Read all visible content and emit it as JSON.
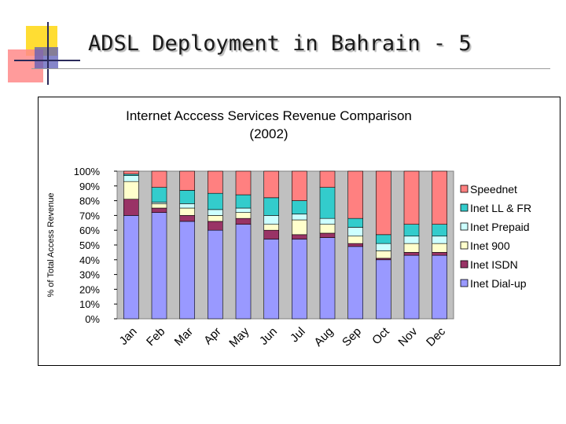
{
  "slide": {
    "title": "ADSL Deployment in Bahrain - 5"
  },
  "chart_data": {
    "type": "bar",
    "stacked": true,
    "title": "Internet  Acccess Services Revenue Comparison (2002)",
    "title_lines": [
      "Internet  Acccess Services Revenue Comparison",
      "(2002)"
    ],
    "xlabel": "",
    "ylabel": "% of Total Access Revenue",
    "ylim": [
      0,
      100
    ],
    "yticks": [
      "0%",
      "10%",
      "20%",
      "30%",
      "40%",
      "50%",
      "60%",
      "70%",
      "80%",
      "90%",
      "100%"
    ],
    "categories": [
      "Jan",
      "Feb",
      "Mar",
      "Apr",
      "May",
      "Jun",
      "Jul",
      "Aug",
      "Sep",
      "Oct",
      "Nov",
      "Dec"
    ],
    "legend_position": "right",
    "grid": false,
    "series": [
      {
        "name": "Inet Dial-up",
        "color": "#9999ff",
        "values": [
          70,
          72,
          66,
          60,
          64,
          54,
          54,
          55,
          49,
          40,
          43,
          43
        ]
      },
      {
        "name": "Inet ISDN",
        "color": "#993366",
        "values": [
          11,
          3,
          4,
          6,
          4,
          6,
          3,
          3,
          2,
          1,
          2,
          2
        ]
      },
      {
        "name": "Inet 900",
        "color": "#ffffcc",
        "values": [
          12,
          3,
          5,
          4,
          4,
          4,
          10,
          6,
          5,
          5,
          6,
          6
        ]
      },
      {
        "name": "Inet Prepaid",
        "color": "#ccffff",
        "values": [
          4,
          1,
          3,
          4,
          3,
          6,
          4,
          4,
          6,
          5,
          5,
          5
        ]
      },
      {
        "name": "Inet LL & FR",
        "color": "#33cccc",
        "values": [
          1,
          10,
          9,
          11,
          9,
          12,
          9,
          21,
          6,
          6,
          8,
          8
        ]
      },
      {
        "name": "Speednet",
        "color": "#ff8080",
        "values": [
          2,
          11,
          13,
          15,
          16,
          18,
          20,
          11,
          32,
          43,
          36,
          36
        ]
      }
    ]
  }
}
